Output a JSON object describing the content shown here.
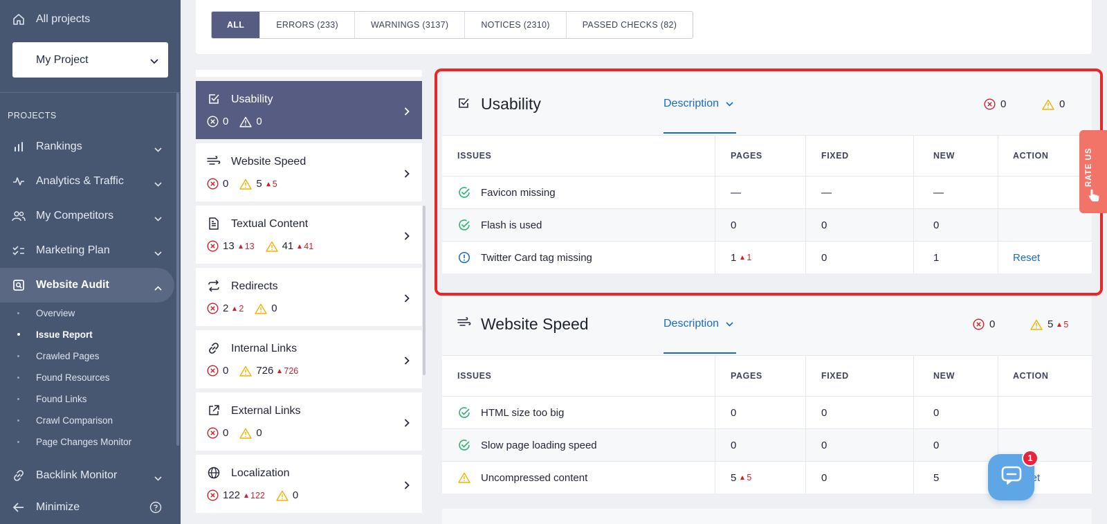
{
  "sidebar": {
    "all_projects": "All projects",
    "project_name": "My Project",
    "section_label": "PROJECTS",
    "nav": [
      {
        "label": "Rankings",
        "icon": "bar-chart-icon"
      },
      {
        "label": "Analytics & Traffic",
        "icon": "pulse-icon"
      },
      {
        "label": "My Competitors",
        "icon": "users-icon"
      },
      {
        "label": "Marketing Plan",
        "icon": "checklist-icon"
      },
      {
        "label": "Website Audit",
        "icon": "audit-search-icon"
      }
    ],
    "audit_sub": [
      "Overview",
      "Issue Report",
      "Crawled Pages",
      "Found Resources",
      "Found Links",
      "Crawl Comparison",
      "Page Changes Monitor"
    ],
    "backlink": "Backlink Monitor",
    "minimize": "Minimize"
  },
  "filters": {
    "tabs": [
      "ALL",
      "ERRORS (233)",
      "WARNINGS (3137)",
      "NOTICES (2310)",
      "PASSED CHECKS (82)"
    ]
  },
  "categories": [
    {
      "name": "Usability",
      "errors": "0",
      "warnings": "0",
      "error_delta": "",
      "warning_delta": ""
    },
    {
      "name": "Website Speed",
      "errors": "0",
      "warnings": "5",
      "error_delta": "",
      "warning_delta": "5"
    },
    {
      "name": "Textual Content",
      "errors": "13",
      "warnings": "41",
      "error_delta": "13",
      "warning_delta": "41"
    },
    {
      "name": "Redirects",
      "errors": "2",
      "warnings": "0",
      "error_delta": "2",
      "warning_delta": ""
    },
    {
      "name": "Internal Links",
      "errors": "0",
      "warnings": "726",
      "error_delta": "",
      "warning_delta": "726"
    },
    {
      "name": "External Links",
      "errors": "0",
      "warnings": "0",
      "error_delta": "",
      "warning_delta": ""
    },
    {
      "name": "Localization",
      "errors": "122",
      "warnings": "0",
      "error_delta": "122",
      "warning_delta": ""
    }
  ],
  "table_headers": {
    "issues": "ISSUES",
    "pages": "PAGES",
    "fixed": "FIXED",
    "new": "NEW",
    "action": "ACTION"
  },
  "panels": {
    "usability": {
      "title": "Usability",
      "description": "Description",
      "errors": "0",
      "warnings": "0",
      "rows": [
        {
          "issue": "Favicon missing",
          "pages": "—",
          "pages_delta": "",
          "fixed": "—",
          "new": "—",
          "action": "",
          "status": "passed"
        },
        {
          "issue": "Flash is used",
          "pages": "0",
          "pages_delta": "",
          "fixed": "0",
          "new": "0",
          "action": "",
          "status": "passed"
        },
        {
          "issue": "Twitter Card tag missing",
          "pages": "1",
          "pages_delta": "1",
          "fixed": "0",
          "new": "1",
          "action": "Reset",
          "status": "notice"
        }
      ]
    },
    "speed": {
      "title": "Website Speed",
      "description": "Description",
      "errors": "0",
      "warnings": "5",
      "warnings_delta": "5",
      "rows": [
        {
          "issue": "HTML size too big",
          "pages": "0",
          "pages_delta": "",
          "fixed": "0",
          "new": "0",
          "action": "",
          "status": "passed"
        },
        {
          "issue": "Slow page loading speed",
          "pages": "0",
          "pages_delta": "",
          "fixed": "0",
          "new": "0",
          "action": "",
          "status": "passed"
        },
        {
          "issue": "Uncompressed content",
          "pages": "5",
          "pages_delta": "5",
          "fixed": "0",
          "new": "5",
          "action": "Reset",
          "status": "warning"
        }
      ]
    }
  },
  "widgets": {
    "rate_us": "RATE US",
    "chat_badge": "1"
  },
  "colors": {
    "sidebar_bg": "#475671",
    "active_purple": "#575d82",
    "link_blue": "#1a6bbf",
    "error_red": "#d11f2a",
    "warning_yellow": "#f0b400",
    "pass_green": "#2bb673",
    "highlight_red": "#ea2727"
  }
}
